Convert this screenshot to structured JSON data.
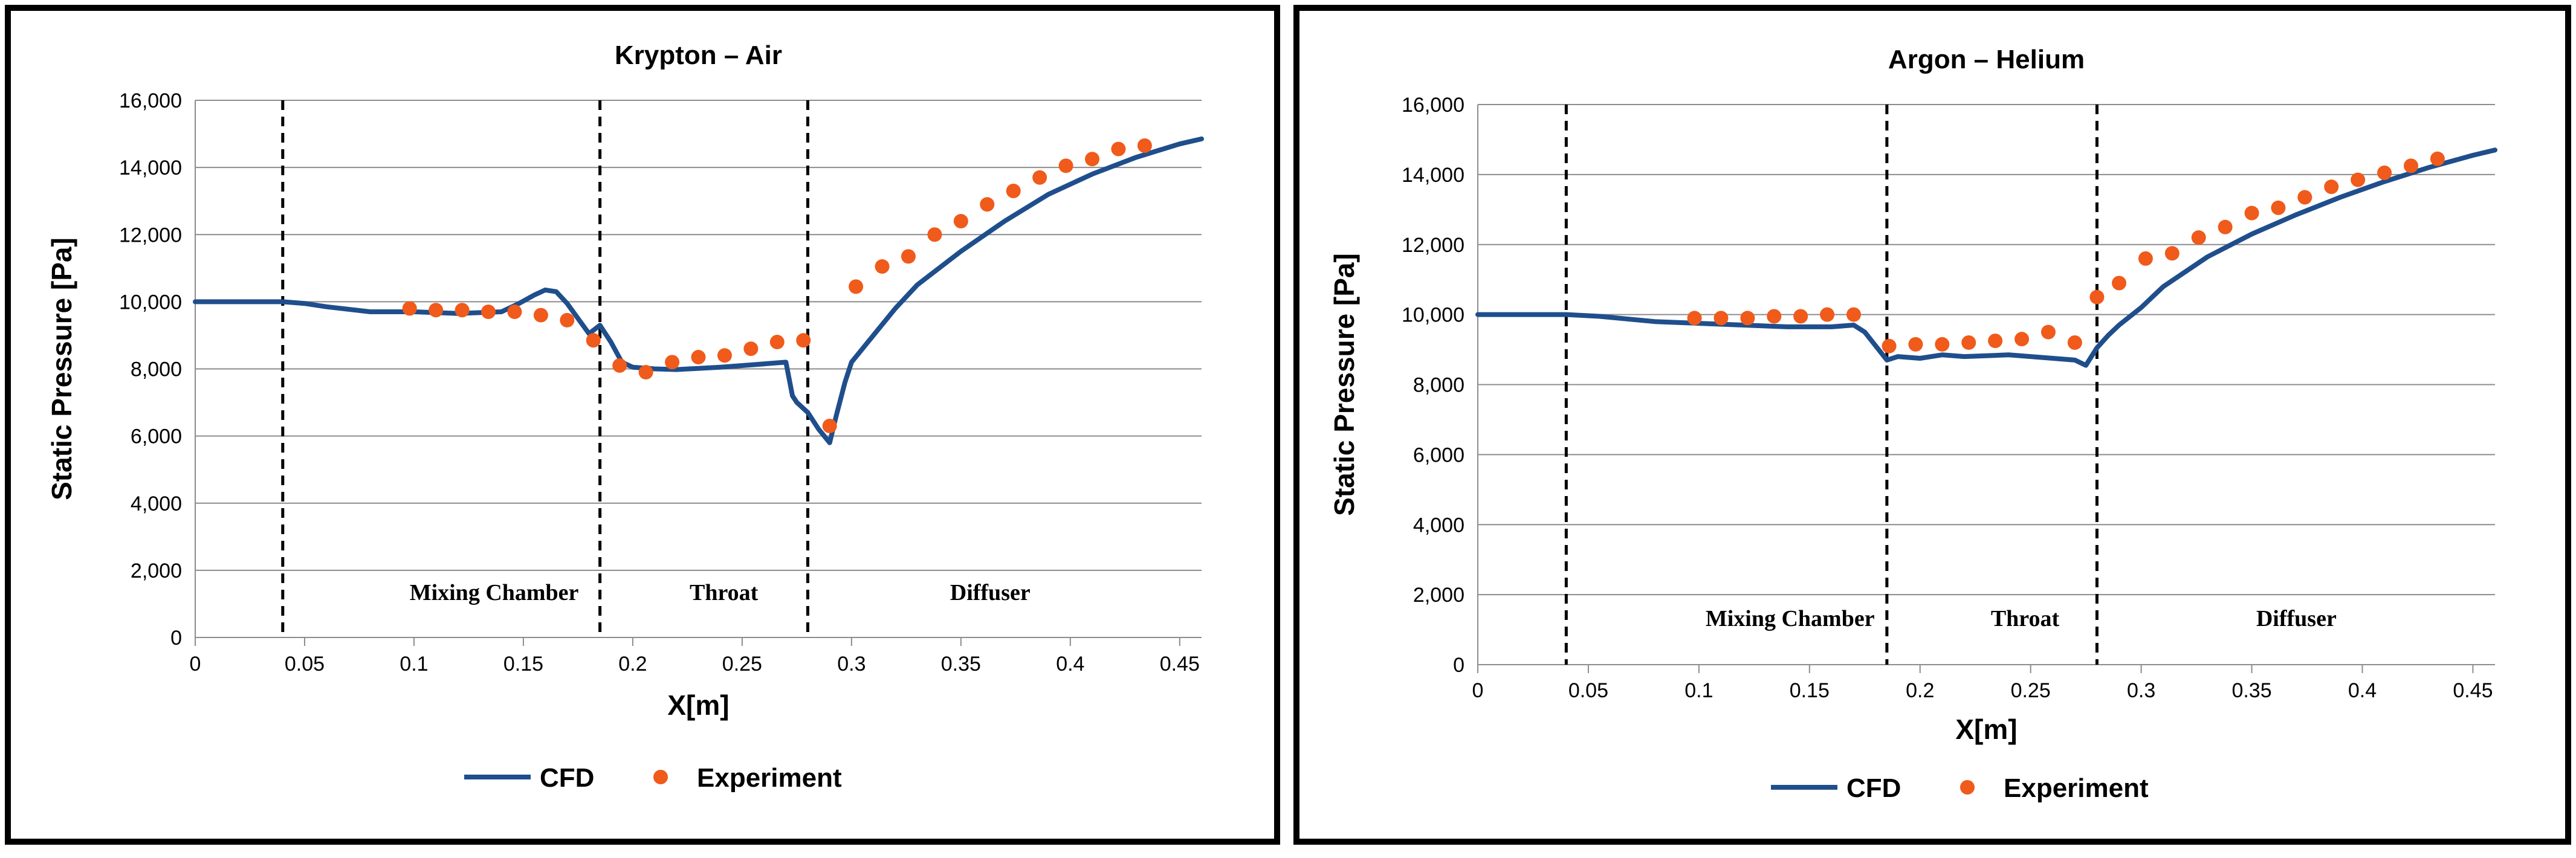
{
  "chart_data": [
    {
      "type": "line",
      "title": "Krypton – Air",
      "xlabel": "X[m]",
      "ylabel": "Static Pressure [Pa]",
      "xlim": [
        0,
        0.46
      ],
      "ylim": [
        0,
        16000
      ],
      "xticks": [
        0,
        0.05,
        0.1,
        0.15,
        0.2,
        0.25,
        0.3,
        0.35,
        0.4,
        0.45
      ],
      "xtick_labels": [
        "0",
        "0.05",
        "0.1",
        "0.15",
        "0.2",
        "0.25",
        "0.3",
        "0.35",
        "0.4",
        "0.45"
      ],
      "yticks": [
        0,
        2000,
        4000,
        6000,
        8000,
        10000,
        12000,
        14000,
        16000
      ],
      "ytick_labels": [
        "0",
        "2,000",
        "4,000",
        "6,000",
        "8,000",
        "10,000",
        "12,000",
        "14,000",
        "16,000"
      ],
      "grid": true,
      "legend_position": "bottom-center",
      "dividers": [
        0.04,
        0.185,
        0.28
      ],
      "regions": [
        {
          "label": "Mixing Chamber",
          "x": 0.098
        },
        {
          "label": "Throat",
          "x": 0.226
        },
        {
          "label": "Diffuser",
          "x": 0.345
        }
      ],
      "series": [
        {
          "name": "CFD",
          "kind": "line",
          "color": "#1f4e8c",
          "x": [
            0,
            0.04,
            0.05,
            0.06,
            0.08,
            0.1,
            0.12,
            0.14,
            0.148,
            0.155,
            0.16,
            0.165,
            0.17,
            0.175,
            0.18,
            0.185,
            0.19,
            0.195,
            0.2,
            0.21,
            0.22,
            0.24,
            0.26,
            0.27,
            0.273,
            0.275,
            0.28,
            0.285,
            0.29,
            0.293,
            0.297,
            0.3,
            0.31,
            0.32,
            0.33,
            0.35,
            0.37,
            0.39,
            0.41,
            0.43,
            0.45,
            0.46
          ],
          "y": [
            10000,
            10000,
            9950,
            9850,
            9700,
            9700,
            9650,
            9700,
            9950,
            10200,
            10350,
            10300,
            9950,
            9500,
            9050,
            9300,
            8800,
            8200,
            8050,
            8000,
            7980,
            8050,
            8150,
            8200,
            7200,
            7000,
            6700,
            6200,
            5800,
            6600,
            7600,
            8200,
            9000,
            9800,
            10500,
            11500,
            12400,
            13200,
            13800,
            14300,
            14700,
            14850
          ]
        },
        {
          "name": "Experiment",
          "kind": "scatter",
          "color": "#f05a1a",
          "x": [
            0.098,
            0.11,
            0.122,
            0.134,
            0.146,
            0.158,
            0.17,
            0.182,
            0.194,
            0.206,
            0.218,
            0.23,
            0.242,
            0.254,
            0.266,
            0.278,
            0.29,
            0.302,
            0.314,
            0.326,
            0.338,
            0.35,
            0.362,
            0.374,
            0.386,
            0.398,
            0.41,
            0.422,
            0.434
          ],
          "y": [
            9800,
            9750,
            9750,
            9700,
            9700,
            9600,
            9450,
            8850,
            8100,
            7900,
            8200,
            8350,
            8400,
            8600,
            8800,
            8850,
            6300,
            10450,
            11050,
            11350,
            12000,
            12400,
            12900,
            13300,
            13700,
            14050,
            14250,
            14550,
            14650
          ]
        }
      ]
    },
    {
      "type": "line",
      "title": "Argon – Helium",
      "xlabel": "X[m]",
      "ylabel": "Static Pressure [Pa]",
      "xlim": [
        0,
        0.46
      ],
      "ylim": [
        0,
        16000
      ],
      "xticks": [
        0,
        0.05,
        0.1,
        0.15,
        0.2,
        0.25,
        0.3,
        0.35,
        0.4,
        0.45
      ],
      "xtick_labels": [
        "0",
        "0.05",
        "0.1",
        "0.15",
        "0.2",
        "0.25",
        "0.3",
        "0.35",
        "0.4",
        "0.45"
      ],
      "yticks": [
        0,
        2000,
        4000,
        6000,
        8000,
        10000,
        12000,
        14000,
        16000
      ],
      "ytick_labels": [
        "0",
        "2,000",
        "4,000",
        "6,000",
        "8,000",
        "10,000",
        "12,000",
        "14,000",
        "16,000"
      ],
      "grid": true,
      "legend_position": "bottom-center",
      "dividers": [
        0.04,
        0.185,
        0.28
      ],
      "regions": [
        {
          "label": "Mixing Chamber",
          "x": 0.103
        },
        {
          "label": "Throat",
          "x": 0.232
        },
        {
          "label": "Diffuser",
          "x": 0.352
        }
      ],
      "series": [
        {
          "name": "CFD",
          "kind": "line",
          "color": "#1f4e8c",
          "x": [
            0,
            0.04,
            0.055,
            0.08,
            0.1,
            0.12,
            0.14,
            0.16,
            0.17,
            0.175,
            0.18,
            0.185,
            0.19,
            0.2,
            0.21,
            0.22,
            0.24,
            0.26,
            0.27,
            0.275,
            0.28,
            0.285,
            0.29,
            0.3,
            0.31,
            0.33,
            0.35,
            0.37,
            0.39,
            0.41,
            0.43,
            0.45,
            0.46
          ],
          "y": [
            10000,
            10000,
            9950,
            9800,
            9750,
            9700,
            9650,
            9650,
            9700,
            9500,
            9100,
            8700,
            8800,
            8750,
            8850,
            8800,
            8850,
            8750,
            8700,
            8550,
            9050,
            9400,
            9700,
            10200,
            10800,
            11650,
            12300,
            12850,
            13350,
            13800,
            14200,
            14550,
            14700
          ]
        },
        {
          "name": "Experiment",
          "kind": "scatter",
          "color": "#f05a1a",
          "x": [
            0.098,
            0.11,
            0.122,
            0.134,
            0.146,
            0.158,
            0.17,
            0.186,
            0.198,
            0.21,
            0.222,
            0.234,
            0.246,
            0.258,
            0.27,
            0.28,
            0.29,
            0.302,
            0.314,
            0.326,
            0.338,
            0.35,
            0.362,
            0.374,
            0.386,
            0.398,
            0.41,
            0.422,
            0.434
          ],
          "y": [
            9900,
            9900,
            9900,
            9950,
            9950,
            10000,
            10000,
            9100,
            9150,
            9150,
            9200,
            9250,
            9300,
            9500,
            9200,
            10500,
            10900,
            11600,
            11750,
            12200,
            12500,
            12900,
            13050,
            13350,
            13650,
            13850,
            14050,
            14250,
            14450
          ]
        }
      ]
    }
  ]
}
